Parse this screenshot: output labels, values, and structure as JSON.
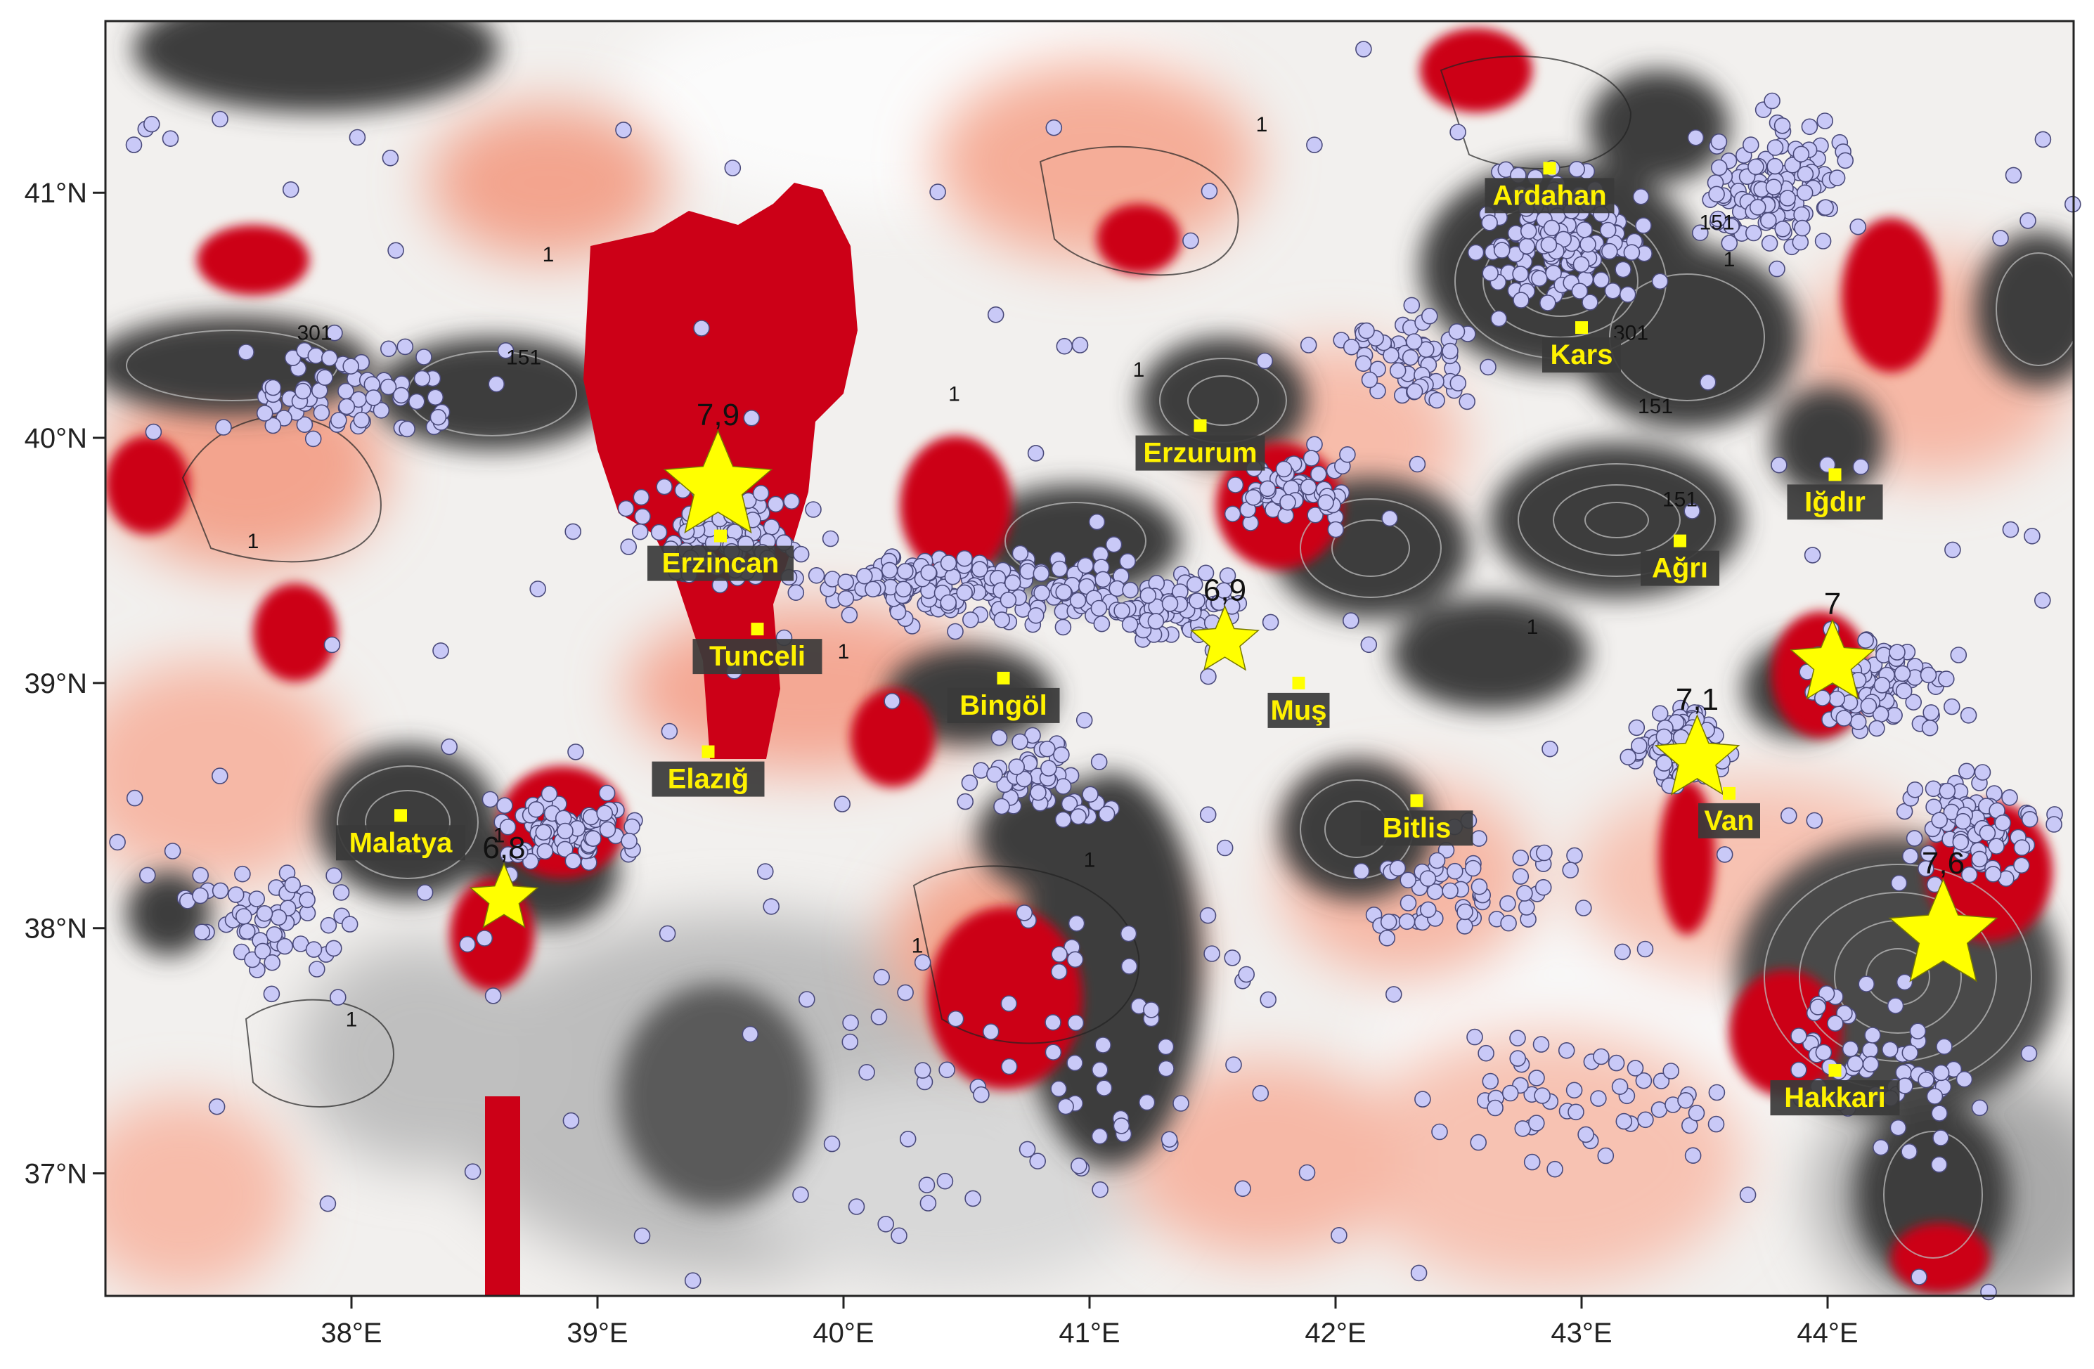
{
  "axes": {
    "x_ticks": [
      {
        "value": 38,
        "label": "38°E"
      },
      {
        "value": 39,
        "label": "39°E"
      },
      {
        "value": 40,
        "label": "40°E"
      },
      {
        "value": 41,
        "label": "41°E"
      },
      {
        "value": 42,
        "label": "42°E"
      },
      {
        "value": 43,
        "label": "43°E"
      },
      {
        "value": 44,
        "label": "44°E"
      }
    ],
    "y_ticks": [
      {
        "value": 37,
        "label": "37°N"
      },
      {
        "value": 38,
        "label": "38°N"
      },
      {
        "value": 39,
        "label": "39°N"
      },
      {
        "value": 40,
        "label": "40°N"
      },
      {
        "value": 41,
        "label": "41°N"
      }
    ],
    "lon_range": [
      37.0,
      45.0
    ],
    "lat_range": [
      36.5,
      41.7
    ]
  },
  "cities": [
    {
      "name": "Ardahan",
      "lon": 42.87,
      "lat": 41.1
    },
    {
      "name": "Kars",
      "lon": 43.0,
      "lat": 40.45
    },
    {
      "name": "Erzurum",
      "lon": 41.45,
      "lat": 40.05
    },
    {
      "name": "Iğdır",
      "lon": 44.03,
      "lat": 39.85
    },
    {
      "name": "Erzincan",
      "lon": 39.5,
      "lat": 39.6
    },
    {
      "name": "Ağrı",
      "lon": 43.4,
      "lat": 39.58
    },
    {
      "name": "Tunceli",
      "lon": 39.65,
      "lat": 39.22
    },
    {
      "name": "Bingöl",
      "lon": 40.65,
      "lat": 39.02
    },
    {
      "name": "Muş",
      "lon": 41.85,
      "lat": 39.0
    },
    {
      "name": "Elazığ",
      "lon": 39.45,
      "lat": 38.72
    },
    {
      "name": "Malatya",
      "lon": 38.2,
      "lat": 38.46
    },
    {
      "name": "Bitlis",
      "lon": 42.33,
      "lat": 38.52
    },
    {
      "name": "Van",
      "lon": 43.6,
      "lat": 38.55
    },
    {
      "name": "Hakkari",
      "lon": 44.03,
      "lat": 37.42
    }
  ],
  "earthquakes": [
    {
      "magnitude": "7,9",
      "lon": 39.49,
      "lat": 39.8,
      "size": "large"
    },
    {
      "magnitude": "6,9",
      "lon": 41.55,
      "lat": 39.17,
      "size": "small"
    },
    {
      "magnitude": "7,1",
      "lon": 43.47,
      "lat": 38.69,
      "size": "medium"
    },
    {
      "magnitude": "7",
      "lon": 44.02,
      "lat": 39.08,
      "size": "medium"
    },
    {
      "magnitude": "6,8",
      "lon": 38.62,
      "lat": 38.12,
      "size": "small"
    },
    {
      "magnitude": "7,6",
      "lon": 44.47,
      "lat": 37.97,
      "size": "large"
    }
  ],
  "contour_labels": [
    {
      "text": "1",
      "lon": 38.8,
      "lat": 40.72
    },
    {
      "text": "1",
      "lon": 37.6,
      "lat": 39.55
    },
    {
      "text": "1",
      "lon": 40.45,
      "lat": 40.15
    },
    {
      "text": "1",
      "lon": 41.2,
      "lat": 40.25
    },
    {
      "text": "1",
      "lon": 41.7,
      "lat": 41.25
    },
    {
      "text": "1",
      "lon": 43.6,
      "lat": 40.7
    },
    {
      "text": "1",
      "lon": 40.0,
      "lat": 39.1
    },
    {
      "text": "1",
      "lon": 42.8,
      "lat": 39.2
    },
    {
      "text": "1",
      "lon": 41.0,
      "lat": 38.25
    },
    {
      "text": "1",
      "lon": 38.6,
      "lat": 38.35
    },
    {
      "text": "1",
      "lon": 38.0,
      "lat": 37.6
    },
    {
      "text": "1",
      "lon": 40.3,
      "lat": 37.9
    },
    {
      "text": "151",
      "lon": 38.7,
      "lat": 40.3
    },
    {
      "text": "151",
      "lon": 43.55,
      "lat": 40.85
    },
    {
      "text": "151",
      "lon": 43.4,
      "lat": 39.72
    },
    {
      "text": "151",
      "lon": 43.3,
      "lat": 40.1
    },
    {
      "text": "301",
      "lon": 37.85,
      "lat": 40.4
    },
    {
      "text": "301",
      "lon": 43.2,
      "lat": 40.4
    }
  ],
  "colors": {
    "high_anomaly": "#cc0017",
    "medium_anomaly": "#f29a82",
    "low_anomaly": "#fbd9cd",
    "zero": "#f4f4f4",
    "negative_light": "#bbbbbb",
    "negative_dark": "#3d3d3d",
    "epicenter_fill": "#c9c9f7",
    "epicenter_stroke": "#4a4a7a",
    "star_fill": "#ffff00",
    "city_box": "#3a3a3a",
    "city_text": "#fff200"
  }
}
